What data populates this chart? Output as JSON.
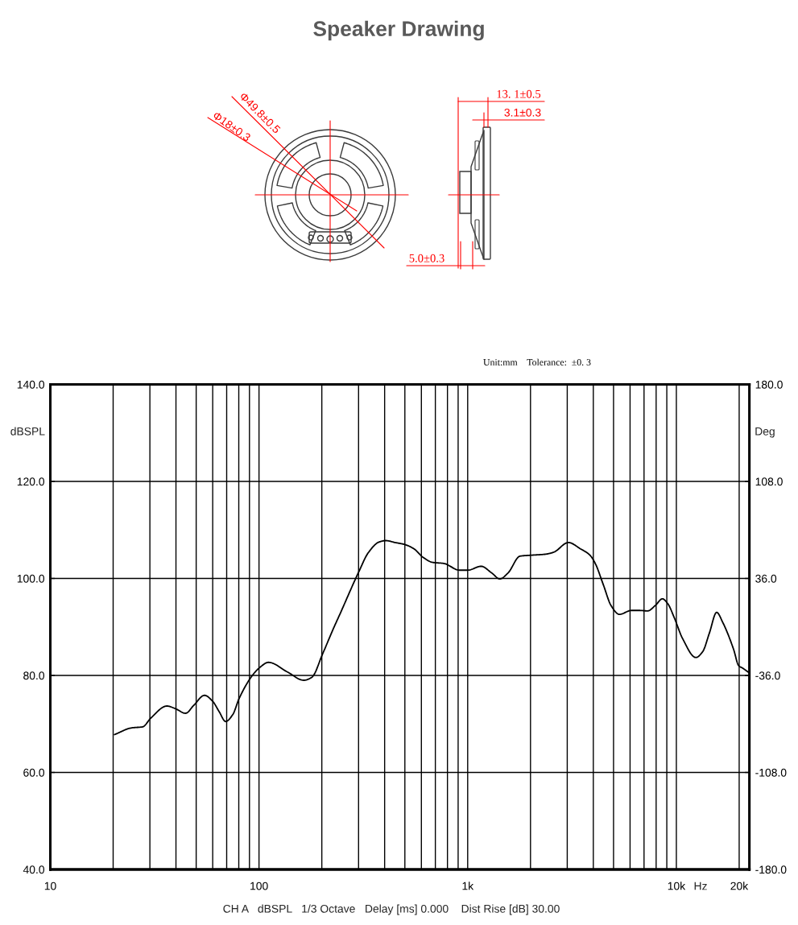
{
  "chart_data": [
    {
      "type": "other",
      "title": "Speaker Drawing",
      "annotations": [
        "Φ49.8±0.5",
        "Φ18±0.3",
        "13. 1±0.5",
        "3.1±0.3",
        "5.0±0.3",
        "Unit:mm    Tolerance:  ±0. 3"
      ]
    },
    {
      "type": "line",
      "x": [
        20.3,
        24.6,
        27.7,
        30.3,
        36.2,
        39.5,
        44.5,
        48.6,
        54.8,
        59.9,
        64.5,
        69.2,
        74.8,
        80.4,
        92.2,
        100.6,
        111,
        137,
        164,
        179,
        202,
        228,
        244,
        301,
        334,
        376,
        405,
        449,
        499,
        553,
        613,
        681,
        766,
        915,
        1000,
        1160,
        1306,
        1426,
        1559,
        1782,
        2037,
        2363,
        2582,
        3038,
        3472,
        3853,
        4085,
        4467,
        4880,
        5333,
        6095,
        6661,
        7280,
        7958,
        8570,
        9094,
        9794,
        10710,
        12400,
        13370,
        14390,
        15600,
        16700,
        18800,
        19900,
        20800,
        22400
      ],
      "series": [
        {
          "color": "#000000",
          "values": [
            67.8,
            69.2,
            69.4,
            71.2,
            73.7,
            73.2,
            72.2,
            73.8,
            75.9,
            74.7,
            72.5,
            70.5,
            71.9,
            75.3,
            79.8,
            81.6,
            82.7,
            80.7,
            79.0,
            79.6,
            84.5,
            89.8,
            92.6,
            101.4,
            105.3,
            107.5,
            107.8,
            107.4,
            107.0,
            106.1,
            104.3,
            103.3,
            103.1,
            101.7,
            101.7,
            102.5,
            101.1,
            99.9,
            101.1,
            104.6,
            104.8,
            105.0,
            105.4,
            107.4,
            106.1,
            104.8,
            103.1,
            98.7,
            94.3,
            92.6,
            93.4,
            93.4,
            93.3,
            94.5,
            95.8,
            94.8,
            91.8,
            87.6,
            83.7,
            84.9,
            88.7,
            93.0,
            90.9,
            85.4,
            82.0,
            81.5,
            80.5
          ]
        }
      ],
      "log": "x",
      "xlim": [
        10,
        22400
      ],
      "xticks": [
        {
          "value": 10,
          "label": "10"
        },
        {
          "value": 20,
          "label": null
        },
        {
          "value": 30,
          "label": null
        },
        {
          "value": 40,
          "label": null
        },
        {
          "value": 50,
          "label": null
        },
        {
          "value": 60,
          "label": null
        },
        {
          "value": 70,
          "label": null
        },
        {
          "value": 80,
          "label": null
        },
        {
          "value": 90,
          "label": null
        },
        {
          "value": 100,
          "label": "100"
        },
        {
          "value": 200,
          "label": null
        },
        {
          "value": 300,
          "label": null
        },
        {
          "value": 400,
          "label": null
        },
        {
          "value": 500,
          "label": null
        },
        {
          "value": 600,
          "label": null
        },
        {
          "value": 700,
          "label": null
        },
        {
          "value": 800,
          "label": null
        },
        {
          "value": 900,
          "label": null
        },
        {
          "value": 1000,
          "label": "1k"
        },
        {
          "value": 2000,
          "label": null
        },
        {
          "value": 3000,
          "label": null
        },
        {
          "value": 4000,
          "label": null
        },
        {
          "value": 5000,
          "label": null
        },
        {
          "value": 6000,
          "label": null
        },
        {
          "value": 7000,
          "label": null
        },
        {
          "value": 8000,
          "label": null
        },
        {
          "value": 9000,
          "label": null
        },
        {
          "value": 10000,
          "label": "10k"
        },
        {
          "value": 20000,
          "label": "20k"
        }
      ],
      "xlabel": "Hz",
      "ylim": [
        40,
        140
      ],
      "yticks": [
        {
          "value": 40,
          "label": "40.0"
        },
        {
          "value": 60,
          "label": "60.0"
        },
        {
          "value": 80,
          "label": "80.0"
        },
        {
          "value": 100,
          "label": "100.0"
        },
        {
          "value": 120,
          "label": "120.0"
        },
        {
          "value": 140,
          "label": "140.0"
        }
      ],
      "ylabel": "dBSPL",
      "y2lim": [
        -180,
        180
      ],
      "y2ticks": [
        {
          "value": -180,
          "label": "-180.0"
        },
        {
          "value": -108,
          "label": "-108.0"
        },
        {
          "value": -36,
          "label": "-36.0"
        },
        {
          "value": 36,
          "label": "36.0"
        },
        {
          "value": 108,
          "label": "108.0"
        },
        {
          "value": 180,
          "label": "180.0"
        }
      ],
      "y2label": "Deg",
      "grid": true,
      "annotations": [
        "CH A   dBSPL   1/3 Octave   Delay [ms] 0.000    Dist Rise [dB] 30.00"
      ]
    }
  ]
}
